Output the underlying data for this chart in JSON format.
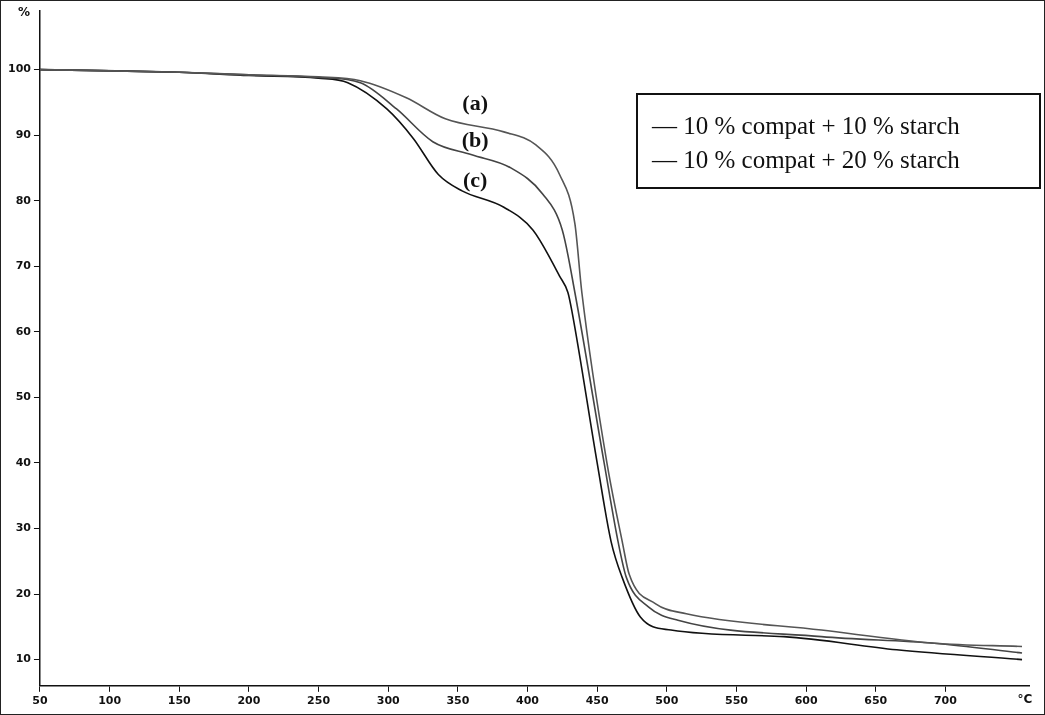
{
  "chart_data": {
    "type": "line",
    "xlabel": "°C",
    "ylabel": "%",
    "xlim": [
      50,
      760
    ],
    "ylim": [
      6,
      109
    ],
    "xticks": [
      50,
      100,
      150,
      200,
      250,
      300,
      350,
      400,
      450,
      500,
      550,
      600,
      650,
      700
    ],
    "yticks": [
      10,
      20,
      30,
      40,
      50,
      60,
      70,
      80,
      90,
      100
    ],
    "grid": false,
    "legend": false,
    "marker": "none",
    "line_style": "solid",
    "annotations": [
      "— 10 % compat + 10 % starch",
      "— 10 % compat + 20 % starch"
    ],
    "series": [
      {
        "name": "(a)",
        "color": "#555555",
        "x": [
          50,
          150,
          200,
          250,
          280,
          313,
          341,
          383,
          406,
          423,
          434,
          439,
          457,
          468,
          473,
          492,
          514,
          611,
          692,
          755
        ],
        "values": [
          100,
          99.6,
          99.2,
          98.9,
          98.3,
          95.7,
          92.5,
          90.5,
          88.5,
          84,
          76.5,
          66,
          40,
          28,
          23,
          18.5,
          17,
          14.5,
          12.5,
          12
        ]
      },
      {
        "name": "(b)",
        "color": "#444444",
        "x": [
          50,
          150,
          200,
          250,
          280,
          306,
          332,
          360,
          388,
          411,
          425,
          434,
          455,
          465,
          471,
          487,
          508,
          611,
          692,
          755
        ],
        "values": [
          100,
          99.6,
          99.2,
          98.8,
          98,
          94,
          89,
          87,
          85,
          81,
          75.5,
          66,
          40,
          28,
          22.5,
          18,
          16,
          13.5,
          12.5,
          11
        ]
      },
      {
        "name": "(c)",
        "color": "#111111",
        "x": [
          50,
          150,
          200,
          250,
          271,
          299,
          318,
          336,
          353,
          383,
          404,
          423,
          429,
          432,
          450,
          460,
          468,
          481,
          503,
          584,
          665,
          755
        ],
        "values": [
          100,
          99.6,
          99.1,
          98.7,
          98,
          94,
          89.5,
          84,
          81.5,
          79,
          75.5,
          68.5,
          66,
          63,
          40,
          28,
          22.5,
          16.5,
          14.5,
          13.5,
          11.5,
          10
        ]
      }
    ]
  }
}
